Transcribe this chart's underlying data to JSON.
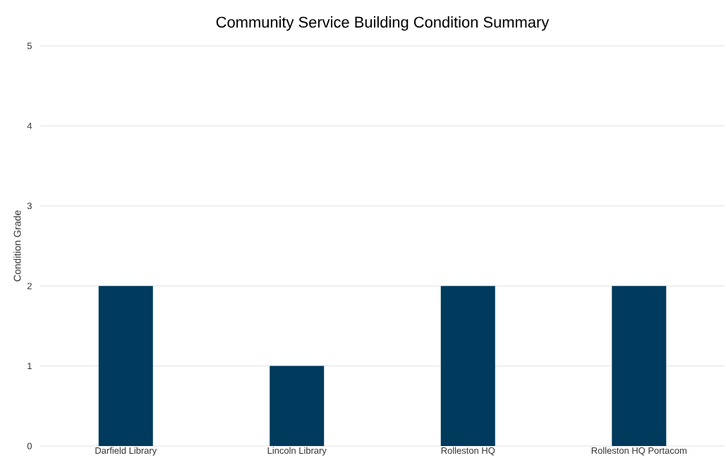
{
  "chart_data": {
    "type": "bar",
    "title": "Community Service Building Condition Summary",
    "ylabel": "Condition Grade",
    "categories": [
      "Darfield Library",
      "Lincoln Library",
      "Rolleston HQ",
      "Rolleston HQ Portacom"
    ],
    "values": [
      2,
      1,
      2,
      2
    ],
    "color": "#003a5c",
    "ylim": [
      0,
      5
    ],
    "yticks": [
      0,
      1,
      2,
      3,
      4,
      5
    ],
    "grid": "y"
  }
}
